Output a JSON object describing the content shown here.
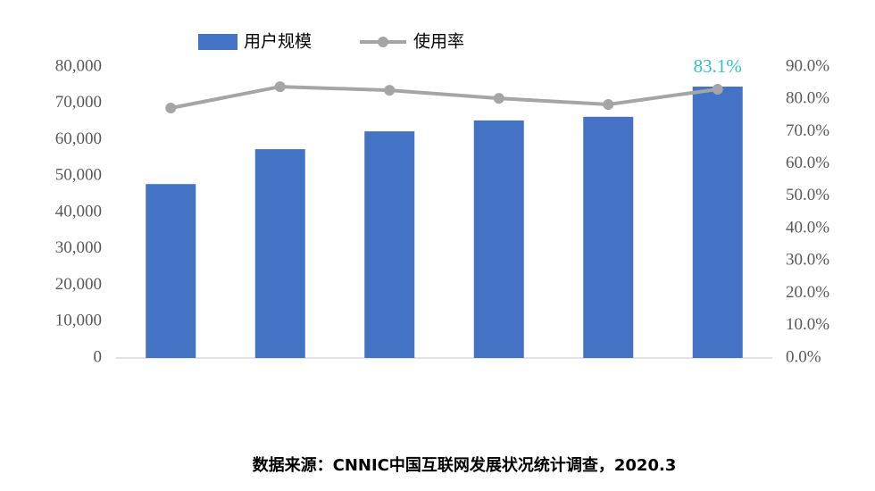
{
  "chart_data": {
    "type": "bar-line",
    "categories": [
      null,
      null,
      null,
      null,
      null,
      null
    ],
    "series": [
      {
        "name": "用户规模",
        "color": "#4472c4",
        "values": [
          47800,
          57400,
          62300,
          65300,
          66300,
          74600
        ]
      },
      {
        "name": "使用率",
        "color": "#a5a5a5",
        "axis": "y2",
        "values": [
          77.3,
          83.9,
          82.8,
          80.3,
          78.4,
          83.1
        ],
        "value_labels": [
          null,
          null,
          null,
          null,
          null,
          "83.1%"
        ],
        "value_label_color": "#2ec4c4"
      }
    ],
    "ylim": [
      0,
      80000
    ],
    "yticks": [
      0,
      {
        "value": 10000,
        "label": "10,000"
      },
      {
        "value": 20000,
        "label": "20,000"
      },
      {
        "value": 30000,
        "label": "30,000"
      },
      {
        "value": 40000,
        "label": "40,000"
      },
      {
        "value": 50000,
        "label": "50,000"
      },
      {
        "value": 60000,
        "label": "60,000"
      },
      {
        "value": 70000,
        "label": "70,000"
      },
      {
        "value": 80000,
        "label": "80,000"
      }
    ],
    "y2lim": [
      0,
      90
    ],
    "y2ticks": [
      {
        "value": 0,
        "label": "0.0%"
      },
      {
        "value": 10,
        "label": "10.0%"
      },
      {
        "value": 20,
        "label": "20.0%"
      },
      {
        "value": 30,
        "label": "30.0%"
      },
      {
        "value": 40,
        "label": "40.0%"
      },
      {
        "value": 50,
        "label": "50.0%"
      },
      {
        "value": 60,
        "label": "60.0%"
      },
      {
        "value": 70,
        "label": "70.0%"
      },
      {
        "value": 80,
        "label": "80.0%"
      },
      {
        "value": 90,
        "label": "90.0%"
      }
    ],
    "legend": "top",
    "source": "数据来源：CNNIC中国互联网发展状况统计调查，2020.3"
  }
}
